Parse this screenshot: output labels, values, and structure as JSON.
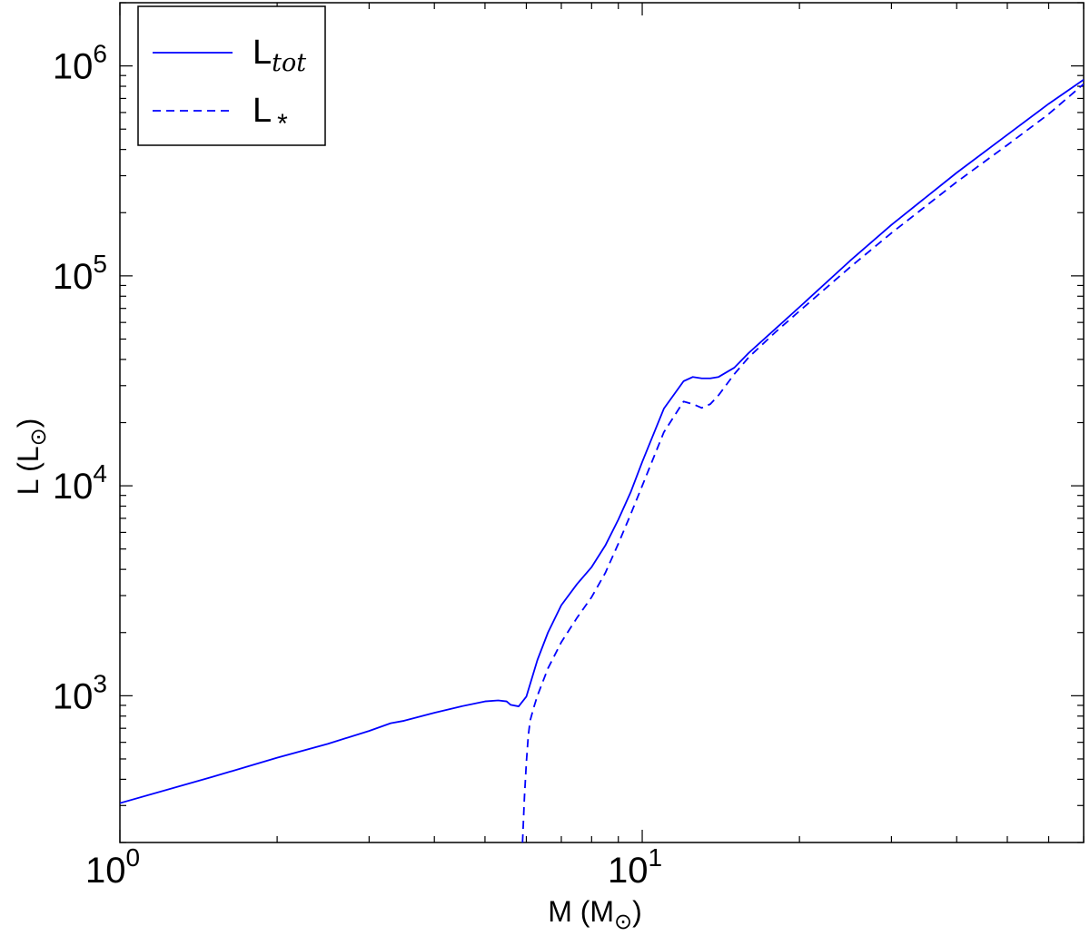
{
  "chart_data": {
    "type": "line",
    "title": "",
    "xlabel": {
      "main": "M (M",
      "sub": "⊙",
      "close": ")"
    },
    "ylabel": {
      "main": "L (L",
      "sub": "⊙",
      "close": ")"
    },
    "x_scale": "log",
    "y_scale": "log",
    "xlim": [
      1,
      70
    ],
    "ylim": [
      200,
      2000000
    ],
    "grid": false,
    "legend_position": "top-left",
    "x_ticks": [
      {
        "value": 1,
        "base": "10",
        "exp": "0"
      },
      {
        "value": 10,
        "base": "10",
        "exp": "1"
      }
    ],
    "y_ticks": [
      {
        "value": 1000,
        "base": "10",
        "exp": "3"
      },
      {
        "value": 10000,
        "base": "10",
        "exp": "4"
      },
      {
        "value": 100000,
        "base": "10",
        "exp": "5"
      },
      {
        "value": 1000000,
        "base": "10",
        "exp": "6"
      }
    ],
    "series": [
      {
        "name": {
          "main": "L",
          "sub": "tot"
        },
        "color": "#0000ff",
        "dash": "solid",
        "x": [
          1.0,
          1.5,
          2.0,
          2.5,
          3.0,
          3.3,
          3.5,
          4.0,
          4.5,
          5.0,
          5.3,
          5.5,
          5.6,
          5.8,
          6.0,
          6.3,
          6.6,
          7.0,
          7.5,
          8.0,
          8.5,
          9.0,
          9.5,
          10.0,
          11.0,
          12.0,
          12.5,
          13.0,
          13.5,
          14.0,
          15.0,
          16.0,
          18.0,
          20.0,
          25.0,
          30.0,
          40.0,
          50.0,
          60.0,
          70.0
        ],
        "y": [
          308,
          410,
          507,
          590,
          680,
          740,
          760,
          830,
          890,
          940,
          950,
          940,
          905,
          890,
          990,
          1480,
          2000,
          2700,
          3400,
          4100,
          5200,
          6900,
          9300,
          13000,
          23300,
          31500,
          33000,
          32500,
          32500,
          33000,
          36500,
          43000,
          56000,
          71000,
          118000,
          175000,
          310000,
          470000,
          660000,
          860000
        ]
      },
      {
        "name": {
          "main": "L",
          "sub": "*"
        },
        "color": "#0000ff",
        "dash": "dashed",
        "x": [
          5.9,
          5.95,
          6.0,
          6.05,
          6.1,
          6.2,
          6.3,
          6.6,
          7.0,
          7.5,
          8.0,
          8.5,
          9.0,
          9.5,
          10.0,
          11.0,
          12.0,
          12.5,
          13.0,
          13.5,
          14.0,
          15.0,
          16.0,
          18.0,
          20.0,
          25.0,
          30.0,
          40.0,
          50.0,
          60.0,
          70.0
        ],
        "y": [
          200,
          330,
          480,
          640,
          760,
          880,
          1000,
          1350,
          1800,
          2350,
          2950,
          3850,
          5300,
          7300,
          10000,
          18000,
          25200,
          24500,
          23500,
          24500,
          27000,
          34000,
          41000,
          54000,
          68000,
          110000,
          160000,
          280000,
          420000,
          590000,
          820000
        ]
      }
    ]
  }
}
